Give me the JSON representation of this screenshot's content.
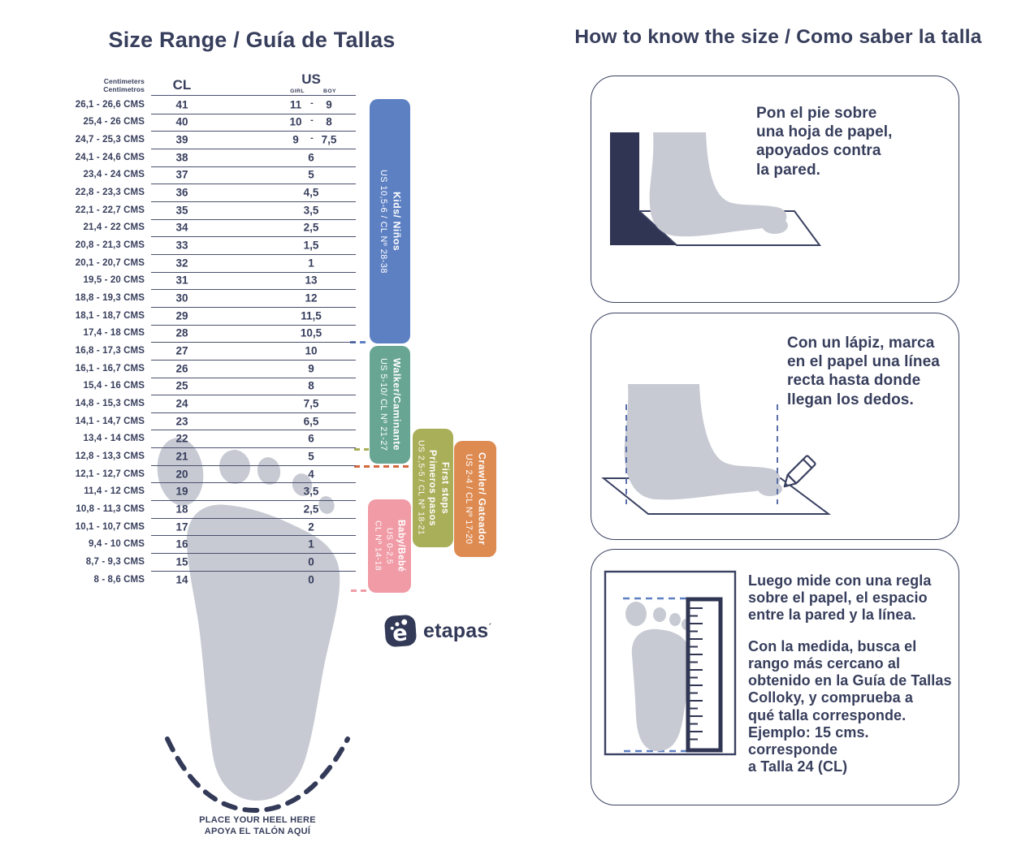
{
  "colors": {
    "navy": "#2F3552",
    "text_navy": "#373E5C",
    "table_line": "#4A506E",
    "foot_gray": "#C7CAD3",
    "band_blue": "#5D80C3",
    "band_teal": "#68A693",
    "band_olive": "#A9AE58",
    "band_orange": "#DE8B52",
    "band_pink": "#F09BA6",
    "dash_orange": "#D2693E"
  },
  "left": {
    "title": "Size Range / Guía de Tallas",
    "table": {
      "cm_header": "Centimeters\nCentimetros",
      "cl_header": "CL",
      "us_header": "US",
      "girl_header": "GIRL",
      "boy_header": "BOY",
      "pair_separator": "-",
      "rows": [
        {
          "cm": "26,1 - 26,6 CMS",
          "cl": "41",
          "girl": "11",
          "boy": "9"
        },
        {
          "cm": "25,4 - 26 CMS",
          "cl": "40",
          "girl": "10",
          "boy": "8"
        },
        {
          "cm": "24,7 - 25,3 CMS",
          "cl": "39",
          "girl": "9",
          "boy": "7,5"
        },
        {
          "cm": "24,1 - 24,6 CMS",
          "cl": "38",
          "us": "6"
        },
        {
          "cm": "23,4 - 24 CMS",
          "cl": "37",
          "us": "5"
        },
        {
          "cm": "22,8 - 23,3 CMS",
          "cl": "36",
          "us": "4,5"
        },
        {
          "cm": "22,1 - 22,7 CMS",
          "cl": "35",
          "us": "3,5"
        },
        {
          "cm": "21,4 - 22 CMS",
          "cl": "34",
          "us": "2,5"
        },
        {
          "cm": "20,8 - 21,3 CMS",
          "cl": "33",
          "us": "1,5"
        },
        {
          "cm": "20,1 - 20,7 CMS",
          "cl": "32",
          "us": "1"
        },
        {
          "cm": "19,5 - 20 CMS",
          "cl": "31",
          "us": "13"
        },
        {
          "cm": "18,8 - 19,3 CMS",
          "cl": "30",
          "us": "12"
        },
        {
          "cm": "18,1 - 18,7 CMS",
          "cl": "29",
          "us": "11,5"
        },
        {
          "cm": "17,4 - 18 CMS",
          "cl": "28",
          "us": "10,5"
        },
        {
          "cm": "16,8 - 17,3 CMS",
          "cl": "27",
          "us": "10"
        },
        {
          "cm": "16,1 - 16,7 CMS",
          "cl": "26",
          "us": "9"
        },
        {
          "cm": "15,4 - 16 CMS",
          "cl": "25",
          "us": "8"
        },
        {
          "cm": "14,8 - 15,3 CMS",
          "cl": "24",
          "us": "7,5"
        },
        {
          "cm": "14,1 - 14,7 CMS",
          "cl": "23",
          "us": "6,5"
        },
        {
          "cm": "13,4 - 14 CMS",
          "cl": "22",
          "us": "6"
        },
        {
          "cm": "12,8 - 13,3 CMS",
          "cl": "21",
          "us": "5"
        },
        {
          "cm": "12,1 - 12,7 CMS",
          "cl": "20",
          "us": "4"
        },
        {
          "cm": "11,4 - 12 CMS",
          "cl": "19",
          "us": "3,5"
        },
        {
          "cm": "10,8 - 11,3 CMS",
          "cl": "18",
          "us": "2,5"
        },
        {
          "cm": "10,1 - 10,7 CMS",
          "cl": "17",
          "us": "2"
        },
        {
          "cm": "9,4 - 10 CMS",
          "cl": "16",
          "us": "1"
        },
        {
          "cm": "8,7 - 9,3 CMS",
          "cl": "15",
          "us": "0"
        },
        {
          "cm": "8 - 8,6 CMS",
          "cl": "14",
          "us": "0"
        }
      ]
    },
    "bands": {
      "kids": {
        "line1": "Kids/ Niños",
        "line2": "US 10,5-6 / CL Nº 28-38"
      },
      "walker": {
        "line1": "Walker/Caminante",
        "line2": "US 5-10/ CL Nº 21-27"
      },
      "first_steps": {
        "line1": "First steps",
        "line2": "Primeros pasos",
        "line3": "US 2,5-5 / CL Nº 18-21"
      },
      "crawler": {
        "line1": "Crawler/ Gateador",
        "line2": "US 2-4 / CL Nº 17-20"
      },
      "baby": {
        "line1": "Baby/Bebé",
        "line2": "US 0-2,5",
        "line3": "CL Nº 14-18"
      }
    },
    "heel_note": "PLACE YOUR HEEL HERE\nAPOYA EL TALÓN AQUÍ",
    "logo": {
      "text": "etapas",
      "mark": "´"
    }
  },
  "right": {
    "title": "How to know the size / Como saber la talla",
    "steps": [
      {
        "text": "Pon el pie sobre\nuna hoja de papel,\napoyados contra\nla pared."
      },
      {
        "text": "Con un lápiz, marca\nen el papel una línea\nrecta hasta donde\nllegan los dedos."
      },
      {
        "p1": "Luego mide con una regla\nsobre el papel, el espacio\nentre la pared y la línea.",
        "p2": "Con la medida, busca el\nrango más cercano al\nobtenido en la Guía de Tallas\nColloky, y comprueba a\nqué talla corresponde.\nEjemplo: 15 cms. corresponde\na Talla 24 (CL)"
      }
    ]
  }
}
